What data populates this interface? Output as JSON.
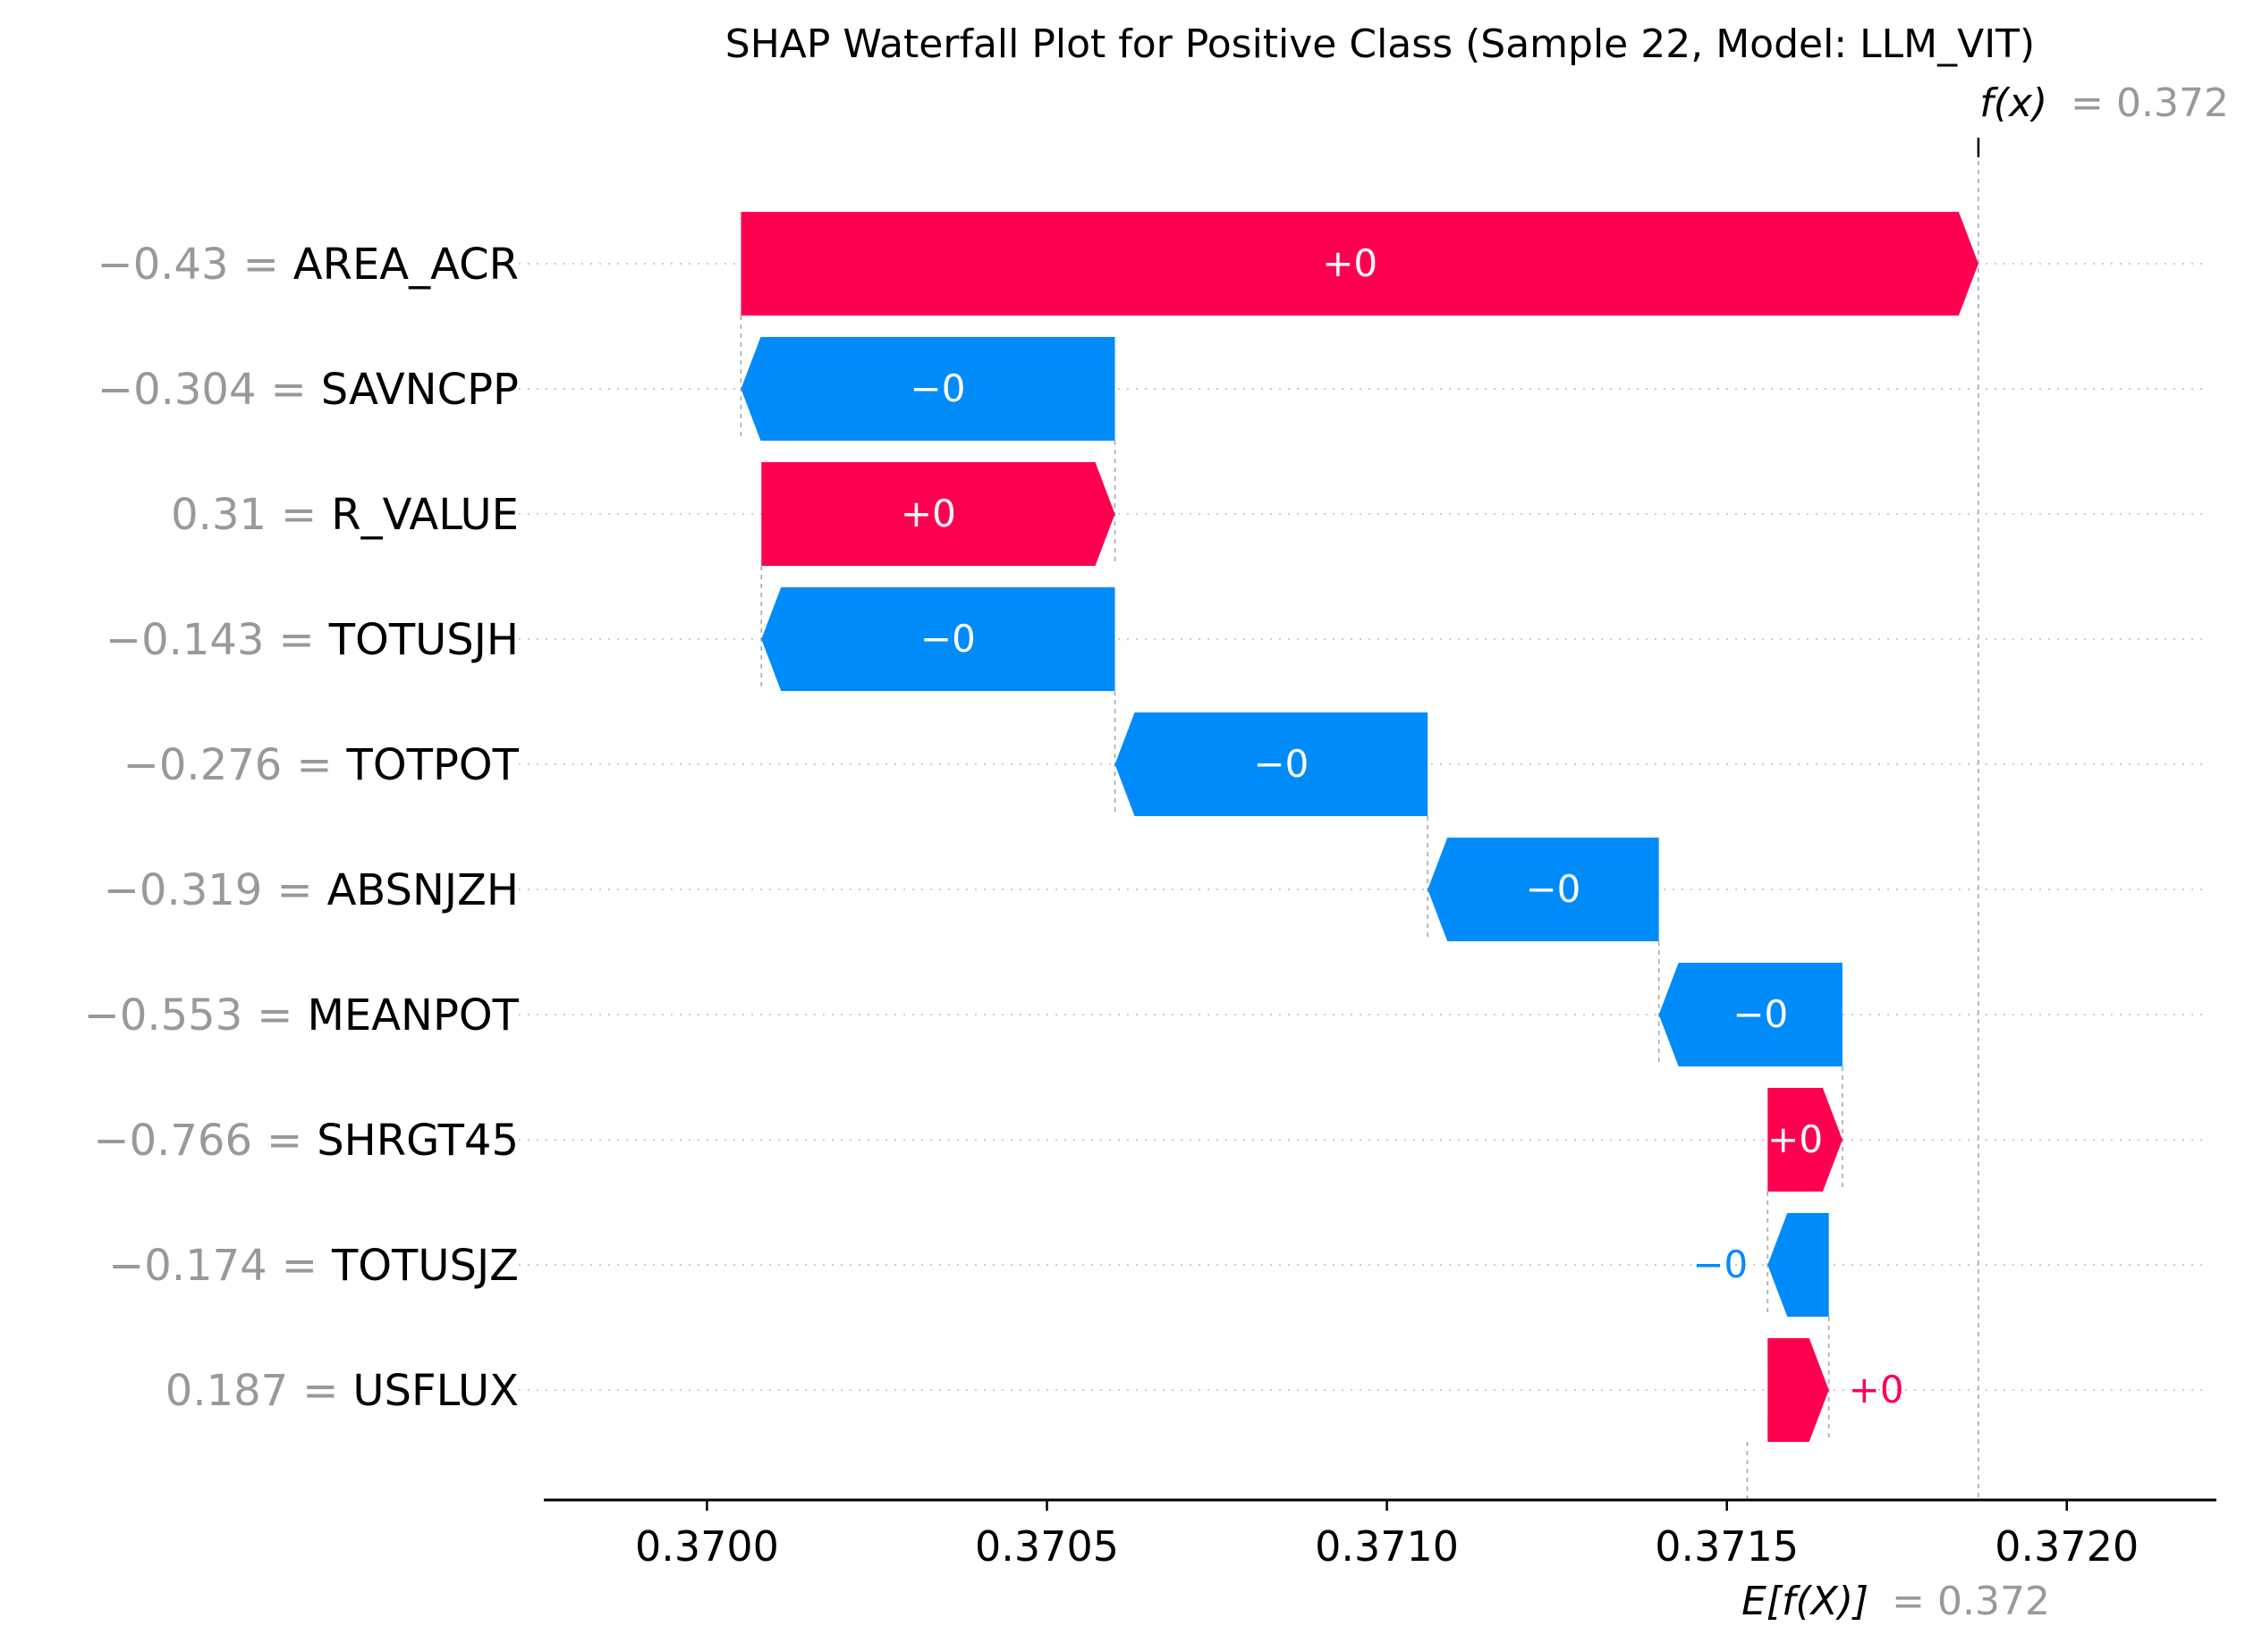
{
  "chart_data": {
    "type": "waterfall",
    "title": "SHAP Waterfall Plot for Positive Class (Sample 22, Model: LLM_VIT)",
    "fx_label": "f(x)",
    "fx_value": "= 0.372",
    "ex_label": "E[f(X)]",
    "ex_value": "= 0.372",
    "base_value": 0.37153,
    "final_value": 0.37187,
    "xlim": [
      0.36976,
      0.37222
    ],
    "ticks": [
      0.37,
      0.3705,
      0.371,
      0.3715,
      0.372
    ],
    "tick_labels": [
      "0.3700",
      "0.3705",
      "0.3710",
      "0.3715",
      "0.3720"
    ],
    "features": [
      {
        "value_text": "−0.43",
        "eq": "=",
        "name": "AREA_ACR",
        "label": "+0",
        "from": 0.37005,
        "to": 0.37187,
        "sign": "pos",
        "label_pos": "inside"
      },
      {
        "value_text": "−0.304",
        "eq": "=",
        "name": "SAVNCPP",
        "label": "−0",
        "from": 0.3706,
        "to": 0.37005,
        "sign": "neg",
        "label_pos": "inside"
      },
      {
        "value_text": "0.31",
        "eq": "=",
        "name": "R_VALUE",
        "label": "+0",
        "from": 0.37008,
        "to": 0.3706,
        "sign": "pos",
        "label_pos": "inside"
      },
      {
        "value_text": "−0.143",
        "eq": "=",
        "name": "TOTUSJH",
        "label": "−0",
        "from": 0.3706,
        "to": 0.37008,
        "sign": "neg",
        "label_pos": "inside"
      },
      {
        "value_text": "−0.276",
        "eq": "=",
        "name": "TOTPOT",
        "label": "−0",
        "from": 0.37106,
        "to": 0.3706,
        "sign": "neg",
        "label_pos": "inside"
      },
      {
        "value_text": "−0.319",
        "eq": "=",
        "name": "ABSNJZH",
        "label": "−0",
        "from": 0.3714,
        "to": 0.37106,
        "sign": "neg",
        "label_pos": "inside"
      },
      {
        "value_text": "−0.553",
        "eq": "=",
        "name": "MEANPOT",
        "label": "−0",
        "from": 0.37167,
        "to": 0.3714,
        "sign": "neg",
        "label_pos": "inside"
      },
      {
        "value_text": "−0.766",
        "eq": "=",
        "name": "SHRGT45",
        "label": "+0",
        "from": 0.37156,
        "to": 0.37167,
        "sign": "pos",
        "label_pos": "inside"
      },
      {
        "value_text": "−0.174",
        "eq": "=",
        "name": "TOTUSJZ",
        "label": "−0",
        "from": 0.37165,
        "to": 0.37156,
        "sign": "neg",
        "label_pos": "outside"
      },
      {
        "value_text": "0.187",
        "eq": "=",
        "name": "USFLUX",
        "label": "+0",
        "from": 0.37156,
        "to": 0.37165,
        "sign": "pos",
        "label_pos": "outside"
      }
    ],
    "colors": {
      "positive": "#ff0051",
      "negative": "#008bfb",
      "muted": "#999999",
      "text": "#000000",
      "grid": "#cccccc"
    }
  }
}
